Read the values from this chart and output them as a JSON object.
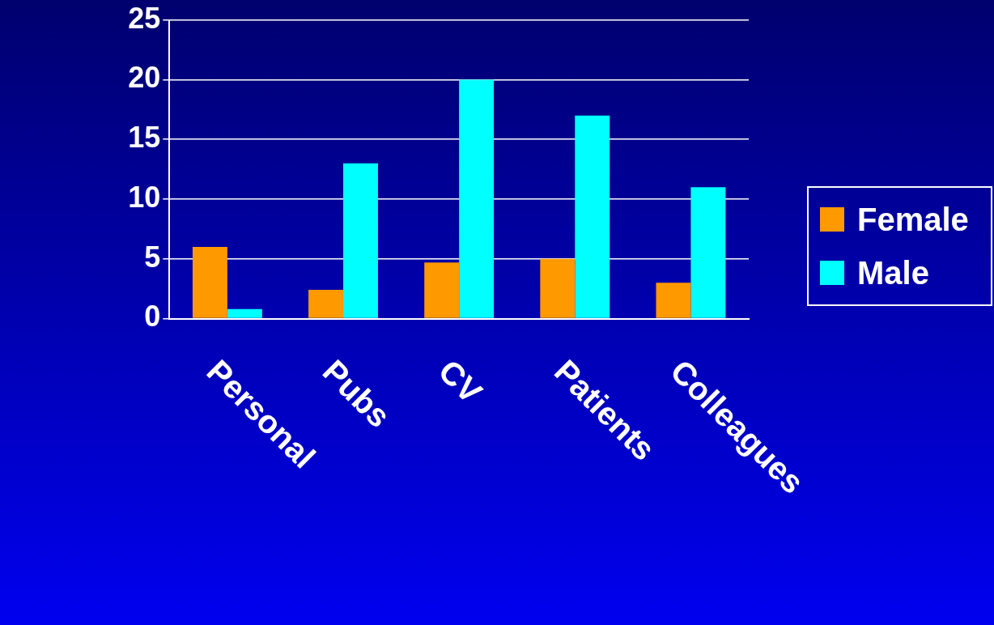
{
  "chart_data": {
    "type": "bar",
    "categories": [
      "Personal",
      "Pubs",
      "CV",
      "Patients",
      "Colleagues"
    ],
    "series": [
      {
        "name": "Female",
        "color": "#ff9900",
        "values": [
          6,
          2.4,
          4.7,
          5,
          3
        ]
      },
      {
        "name": "Male",
        "color": "#00ffff",
        "values": [
          0.8,
          13,
          20,
          17,
          11
        ]
      }
    ],
    "ylim": [
      0,
      25
    ],
    "yticks": [
      0,
      5,
      10,
      15,
      20,
      25
    ],
    "grid": "y",
    "legend": "right"
  }
}
